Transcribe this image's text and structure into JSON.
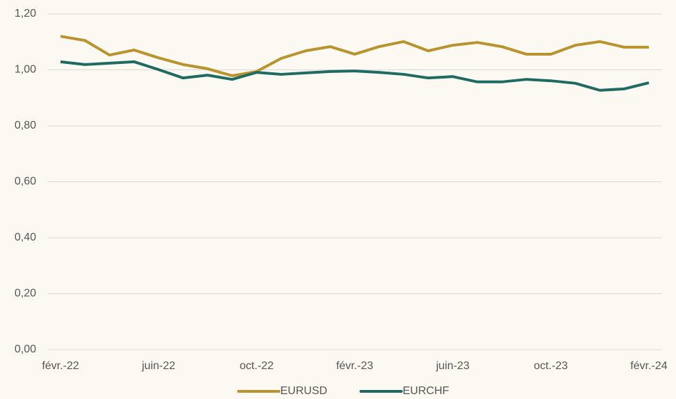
{
  "chart_data": {
    "type": "line",
    "categories": [
      "févr.-22",
      null,
      null,
      null,
      "juin-22",
      null,
      null,
      null,
      "oct.-22",
      null,
      null,
      null,
      "févr.-23",
      null,
      null,
      null,
      "juin-23",
      null,
      null,
      null,
      "oct.-23",
      null,
      null,
      null,
      "févr.-24"
    ],
    "series": [
      {
        "name": "EURUSD",
        "color": "#b8932e",
        "values": [
          1.12,
          1.105,
          1.053,
          1.071,
          1.043,
          1.019,
          1.004,
          0.979,
          0.994,
          1.041,
          1.068,
          1.083,
          1.056,
          1.083,
          1.101,
          1.068,
          1.088,
          1.098,
          1.083,
          1.056,
          1.056,
          1.088,
          1.101,
          1.081,
          1.081
        ]
      },
      {
        "name": "EURCHF",
        "color": "#1f6b62",
        "values": [
          1.029,
          1.019,
          1.024,
          1.029,
          1.001,
          0.971,
          0.981,
          0.966,
          0.991,
          0.984,
          0.989,
          0.994,
          0.996,
          0.991,
          0.984,
          0.971,
          0.976,
          0.957,
          0.957,
          0.966,
          0.961,
          0.952,
          0.927,
          0.932,
          0.954
        ]
      }
    ],
    "ylim": [
      0,
      1.2
    ],
    "yticks": [
      {
        "value": 0,
        "label": "0,00"
      },
      {
        "value": 0.2,
        "label": "0,20"
      },
      {
        "value": 0.4,
        "label": "0,40"
      },
      {
        "value": 0.6,
        "label": "0,60"
      },
      {
        "value": 0.8,
        "label": "0,80"
      },
      {
        "value": 1,
        "label": "1,00"
      },
      {
        "value": 1.2,
        "label": "1,20"
      }
    ],
    "grid": true,
    "legend": "bottom"
  }
}
